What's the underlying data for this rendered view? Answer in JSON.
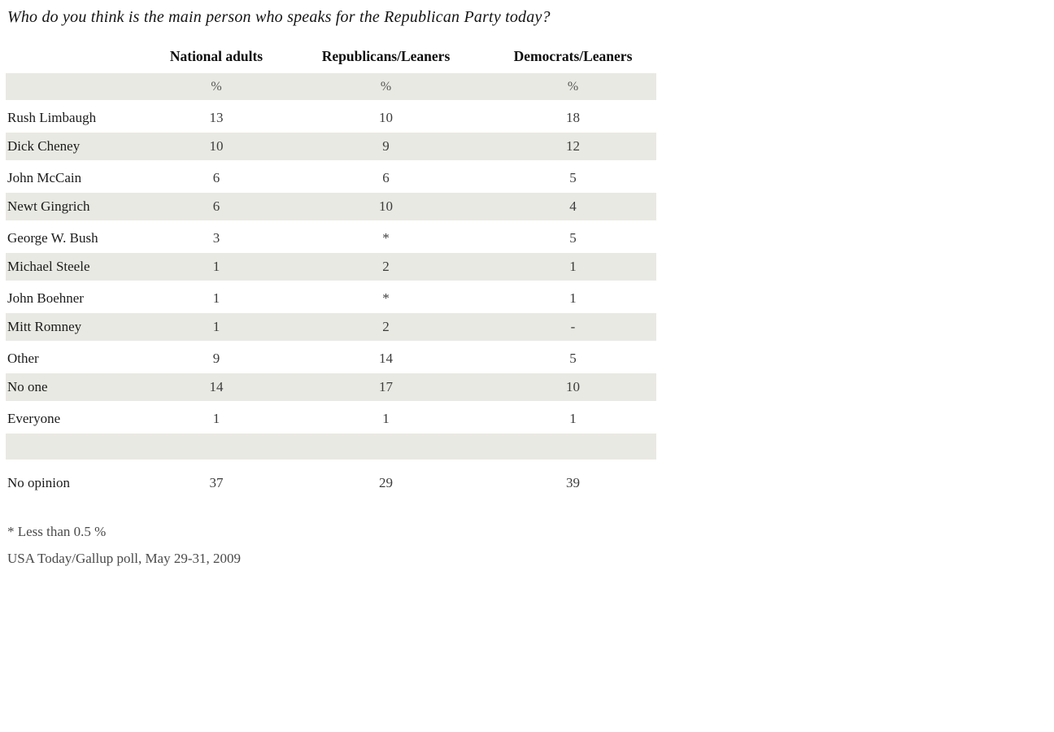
{
  "title": "Who do you think is the main person who speaks for the Republican Party today?",
  "chart_data": {
    "type": "table",
    "title": "Who do you think is the main person who speaks for the Republican Party today?",
    "columns": [
      "National adults",
      "Republicans/Leaners",
      "Democrats/Leaners"
    ],
    "units": [
      "%",
      "%",
      "%"
    ],
    "rows": [
      {
        "label": "Rush Limbaugh",
        "values": [
          "13",
          "10",
          "18"
        ]
      },
      {
        "label": "Dick Cheney",
        "values": [
          "10",
          "9",
          "12"
        ]
      },
      {
        "label": "John McCain",
        "values": [
          "6",
          "6",
          "5"
        ]
      },
      {
        "label": "Newt Gingrich",
        "values": [
          "6",
          "10",
          "4"
        ]
      },
      {
        "label": "George W. Bush",
        "values": [
          "3",
          "*",
          "5"
        ]
      },
      {
        "label": "Michael Steele",
        "values": [
          "1",
          "2",
          "1"
        ]
      },
      {
        "label": "John Boehner",
        "values": [
          "1",
          "*",
          "1"
        ]
      },
      {
        "label": "Mitt Romney",
        "values": [
          "1",
          "2",
          "-"
        ]
      },
      {
        "label": "Other",
        "values": [
          "9",
          "14",
          "5"
        ]
      },
      {
        "label": "No one",
        "values": [
          "14",
          "17",
          "10"
        ]
      },
      {
        "label": "Everyone",
        "values": [
          "1",
          "1",
          "1"
        ]
      },
      {
        "label": "No opinion",
        "values": [
          "37",
          "29",
          "39"
        ]
      }
    ],
    "footnotes": [
      "* Less than 0.5 %",
      "USA Today/Gallup poll, May 29-31, 2009"
    ],
    "layout": {
      "row_shade_color": "#e9e9e3",
      "shaded_row_labels": [
        "Dick Cheney",
        "Newt Gingrich",
        "Michael Steele",
        "Mitt Romney",
        "No one"
      ]
    }
  }
}
